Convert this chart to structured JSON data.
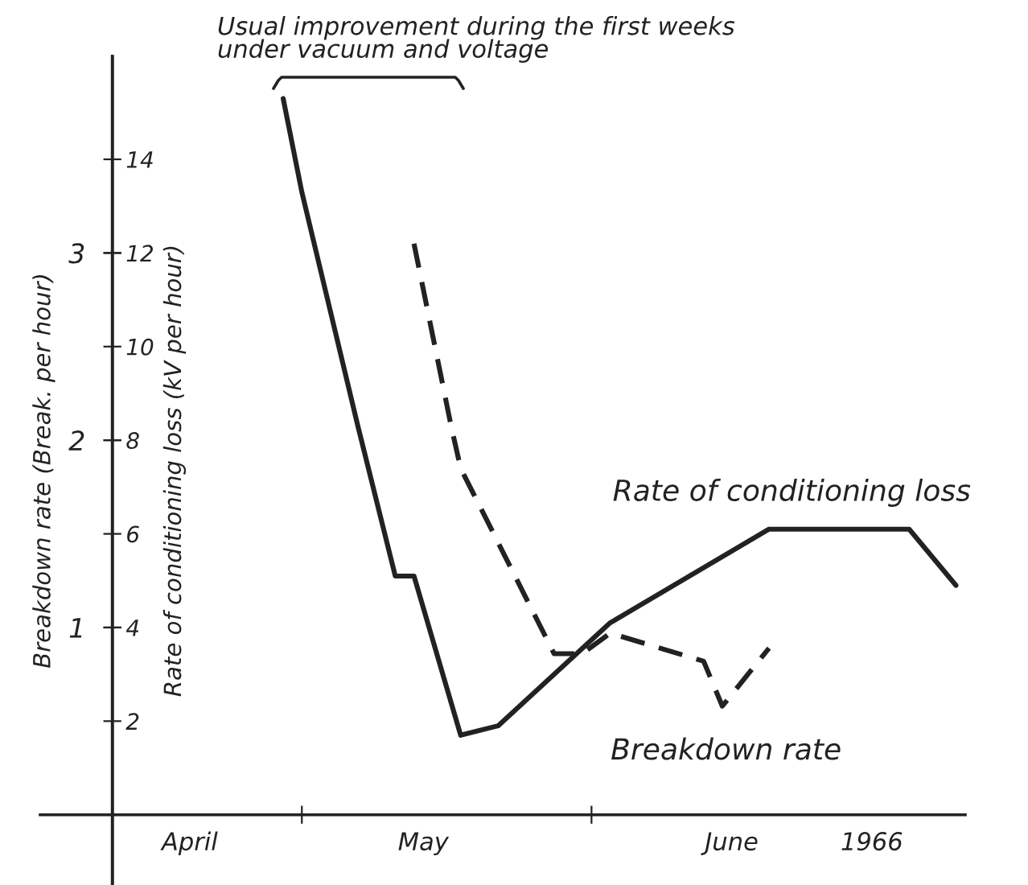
{
  "chart_data": {
    "type": "line",
    "ylabel": "Rate of conditioning loss (kV per hour)",
    "y2label": "Breakdown rate (Break. per hour)",
    "annotations": [
      "Usual improvement during the first weeks\nunder vacuum and voltage"
    ],
    "series": [
      {
        "name": "Rate of conditioning loss",
        "color": "#222222",
        "line_style": "solid",
        "x": [
          "1966-04-29",
          "1966-05-01",
          "1966-05-07",
          "1966-05-11",
          "1966-05-13",
          "1966-05-18",
          "1966-05-22",
          "1966-06-03",
          "1966-06-20",
          "1966-07-05",
          "1966-07-10"
        ],
        "values": [
          15.3,
          13.3,
          8.3,
          5.1,
          5.1,
          1.7,
          1.9,
          4.1,
          6.1,
          6.1,
          4.9
        ]
      },
      {
        "name": "Breakdown rate",
        "color": "#222222",
        "line_style": "dashed",
        "axis": "y2",
        "x": [
          "1966-05-13",
          "1966-05-17",
          "1966-05-18",
          "1966-05-28",
          "1966-05-31",
          "1966-06-03",
          "1966-06-13",
          "1966-06-15",
          "1966-06-20"
        ],
        "values": [
          3.05,
          2.07,
          1.85,
          0.86,
          0.86,
          0.97,
          0.82,
          0.58,
          0.89
        ]
      }
    ],
    "xlim": [
      "1966-04-03",
      "1966-07-11"
    ],
    "xticks": [
      {
        "value": "1966-04-19",
        "label": "April"
      },
      {
        "value": "1966-05-01",
        "label": null
      },
      {
        "value": "1966-05-14",
        "label": "May"
      },
      {
        "value": "1966-06-01",
        "label": null
      },
      {
        "value": "1966-06-16",
        "label": "June"
      },
      {
        "value": "1966-07-01",
        "label": "1966"
      }
    ],
    "ylim": [
      -1.5,
      16.2
    ],
    "yticks": [
      2,
      4,
      6,
      8,
      10,
      12,
      14
    ],
    "y2lim": [
      -0.375,
      4.05
    ],
    "y2ticks": [
      1,
      2,
      3
    ],
    "grid": false,
    "marker": "none"
  }
}
